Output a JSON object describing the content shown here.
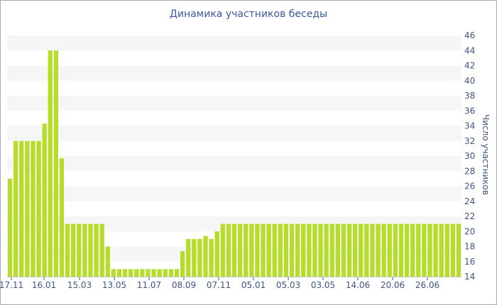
{
  "chart_data": {
    "type": "bar",
    "title": "Динамика участников беседы",
    "ylabel": "Число участников",
    "xlabel": "",
    "ylim": [
      14,
      46
    ],
    "y_ticks": [
      14,
      16,
      18,
      20,
      22,
      24,
      26,
      28,
      30,
      32,
      34,
      36,
      38,
      40,
      42,
      44,
      46
    ],
    "y_axis_position": "right",
    "grid": "horizontal alternating bands",
    "bar_color": "#b6dd2c",
    "band_color": "#f6f6f6",
    "x_tick_labels": [
      "17.11",
      "16.01",
      "15.03",
      "13.05",
      "11.07",
      "08.09",
      "07.11",
      "05.01",
      "05.03",
      "03.05",
      "14.06",
      "20.06",
      "26.06"
    ],
    "values": [
      27,
      32,
      32,
      32,
      32,
      32,
      34.3,
      44,
      44,
      29.7,
      21,
      21,
      21,
      21,
      21,
      21,
      21,
      18,
      15,
      15,
      15,
      15,
      15,
      15,
      15,
      15,
      15,
      15,
      15,
      15,
      17.4,
      19,
      19,
      19,
      19.4,
      19,
      20,
      21,
      21,
      21,
      21,
      21,
      21,
      21,
      21,
      21,
      21,
      21,
      21,
      21,
      21,
      21,
      21,
      21,
      21,
      21,
      21,
      21,
      21,
      21,
      21,
      21,
      21,
      21,
      21,
      21,
      21,
      21,
      21,
      21,
      21,
      21,
      21,
      21,
      21,
      21,
      21,
      21,
      21
    ]
  }
}
